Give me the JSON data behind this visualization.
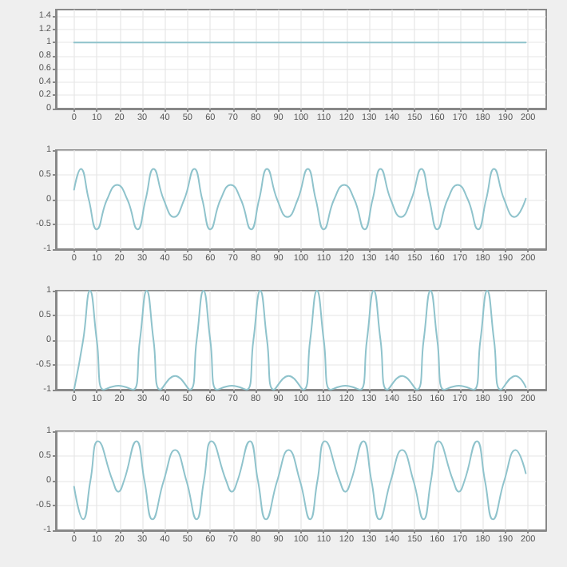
{
  "chart_data": [
    {
      "type": "line",
      "x": [
        0,
        20,
        40,
        60,
        80,
        100,
        120,
        140,
        160,
        180,
        199
      ],
      "series": [
        {
          "color": "#8fc3cc",
          "values": [
            1,
            1,
            1,
            1,
            1,
            1,
            1,
            1,
            1,
            1,
            1
          ]
        }
      ],
      "xlim": [
        -8,
        208
      ],
      "xticks": [
        0,
        10,
        20,
        30,
        40,
        50,
        60,
        70,
        80,
        90,
        100,
        110,
        120,
        130,
        140,
        150,
        160,
        170,
        180,
        190,
        200
      ],
      "ylim": [
        0,
        1.5
      ],
      "yticks": [
        0,
        0.2,
        0.4,
        0.6,
        0.8,
        1,
        1.2,
        1.4
      ],
      "grid": true,
      "marker": "none"
    },
    {
      "type": "line",
      "x": [
        0,
        3,
        6.5,
        10,
        14.5,
        19,
        23.5,
        28,
        31.5,
        35,
        39.5,
        44,
        48.5,
        53,
        56.5,
        60,
        64.5,
        69,
        73.5,
        78,
        81.5,
        85,
        89.5,
        94,
        98.5,
        103,
        106.5,
        110,
        114.5,
        119,
        123.5,
        128,
        131.5,
        135,
        139.5,
        144,
        148.5,
        153,
        156.5,
        160,
        164.5,
        169,
        173.5,
        178,
        181.5,
        185,
        189.5,
        194,
        199
      ],
      "series": [
        {
          "color": "#8fc3cc",
          "values": [
            0.2,
            0.62,
            0,
            -0.6,
            0,
            0.3,
            0,
            -0.6,
            0,
            0.62,
            0,
            -0.35,
            0,
            0.62,
            0,
            -0.6,
            0,
            0.3,
            0,
            -0.6,
            0,
            0.62,
            0,
            -0.35,
            0,
            0.62,
            0,
            -0.6,
            0,
            0.3,
            0,
            -0.6,
            0,
            0.62,
            0,
            -0.35,
            0,
            0.62,
            0,
            -0.6,
            0,
            0.3,
            0,
            -0.6,
            0,
            0.62,
            0,
            -0.35,
            0.02
          ]
        }
      ],
      "xlim": [
        -8,
        208
      ],
      "xticks": [
        0,
        10,
        20,
        30,
        40,
        50,
        60,
        70,
        80,
        90,
        100,
        110,
        120,
        130,
        140,
        150,
        160,
        170,
        180,
        190,
        200
      ],
      "ylim": [
        -1,
        1
      ],
      "yticks": [
        -1,
        -0.5,
        0,
        0.5,
        1
      ],
      "grid": true,
      "marker": "none"
    },
    {
      "type": "line",
      "x": [
        0,
        4,
        7,
        10,
        13,
        19.5,
        26,
        29,
        32,
        35,
        38,
        44.5,
        51,
        54,
        57,
        60,
        63,
        69.5,
        76,
        79,
        82,
        85,
        88,
        94.5,
        101,
        104,
        107,
        110,
        113,
        119.5,
        126,
        129,
        132,
        135,
        138,
        144.5,
        151,
        154,
        157,
        160,
        163,
        169.5,
        176,
        179,
        182,
        185,
        188,
        194.5,
        199
      ],
      "series": [
        {
          "color": "#8fc3cc",
          "values": [
            -1,
            0,
            1,
            0,
            -1,
            -0.92,
            -1,
            0,
            1,
            0,
            -1,
            -0.72,
            -1,
            0,
            1,
            0,
            -1,
            -0.92,
            -1,
            0,
            1,
            0,
            -1,
            -0.72,
            -1,
            0,
            1,
            0,
            -1,
            -0.92,
            -1,
            0,
            1,
            0,
            -1,
            -0.72,
            -1,
            0,
            1,
            0,
            -1,
            -0.92,
            -1,
            0,
            1,
            0,
            -1,
            -0.72,
            -0.95
          ]
        }
      ],
      "xlim": [
        -8,
        208
      ],
      "xticks": [
        0,
        10,
        20,
        30,
        40,
        50,
        60,
        70,
        80,
        90,
        100,
        110,
        120,
        130,
        140,
        150,
        160,
        170,
        180,
        190,
        200
      ],
      "ylim": [
        -1,
        1
      ],
      "yticks": [
        -1,
        -0.5,
        0,
        0.5,
        1
      ],
      "grid": true,
      "marker": "none"
    },
    {
      "type": "line",
      "x": [
        0,
        4,
        7.2,
        10.5,
        17,
        19.5,
        22,
        27.5,
        31,
        34.5,
        39.5,
        44.5,
        49.5,
        54,
        57.2,
        60.5,
        67,
        69.5,
        72,
        77.5,
        81,
        84.5,
        89.5,
        94.5,
        99.5,
        104,
        107.2,
        110.5,
        117,
        119.5,
        122,
        127.5,
        131,
        134.5,
        139.5,
        144.5,
        149.5,
        154,
        157.2,
        160.5,
        167,
        169.5,
        172,
        177.5,
        181,
        184.5,
        189.5,
        194.5,
        199
      ],
      "series": [
        {
          "color": "#8fc3cc",
          "values": [
            -0.12,
            -0.78,
            0,
            0.8,
            0,
            -0.22,
            0,
            0.8,
            0,
            -0.78,
            0,
            0.62,
            0,
            -0.78,
            0,
            0.8,
            0,
            -0.22,
            0,
            0.8,
            0,
            -0.78,
            0,
            0.62,
            0,
            -0.78,
            0,
            0.8,
            0,
            -0.22,
            0,
            0.8,
            0,
            -0.78,
            0,
            0.62,
            0,
            -0.78,
            0,
            0.8,
            0,
            -0.22,
            0,
            0.8,
            0,
            -0.78,
            0,
            0.62,
            0.15
          ]
        }
      ],
      "xlim": [
        -8,
        208
      ],
      "xticks": [
        0,
        10,
        20,
        30,
        40,
        50,
        60,
        70,
        80,
        90,
        100,
        110,
        120,
        130,
        140,
        150,
        160,
        170,
        180,
        190,
        200
      ],
      "ylim": [
        -1,
        1
      ],
      "yticks": [
        -1,
        -0.5,
        0,
        0.5,
        1
      ],
      "grid": true,
      "marker": "none"
    }
  ]
}
